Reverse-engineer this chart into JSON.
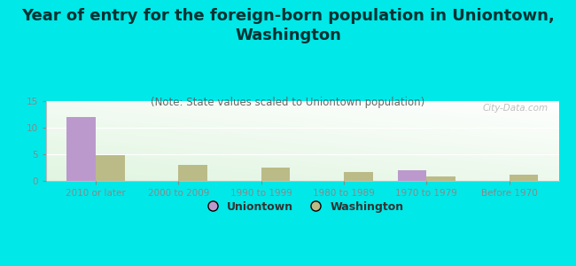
{
  "title": "Year of entry for the foreign-born population in Uniontown,\nWashington",
  "subtitle": "(Note: State values scaled to Uniontown population)",
  "categories": [
    "2010 or later",
    "2000 to 2009",
    "1990 to 1999",
    "1980 to 1989",
    "1970 to 1979",
    "Before 1970"
  ],
  "uniontown_values": [
    12,
    0,
    0,
    0,
    2,
    0
  ],
  "washington_values": [
    4.8,
    3.0,
    2.5,
    1.7,
    0.9,
    1.1
  ],
  "uniontown_color": "#bb99cc",
  "washington_color": "#bbbb88",
  "background_color": "#00e8e8",
  "ylim": [
    0,
    15
  ],
  "yticks": [
    0,
    5,
    10,
    15
  ],
  "bar_width": 0.35,
  "legend_labels": [
    "Uniontown",
    "Washington"
  ],
  "watermark": "City-Data.com",
  "title_fontsize": 13,
  "subtitle_fontsize": 8.5,
  "tick_fontsize": 7.5,
  "title_color": "#003333"
}
